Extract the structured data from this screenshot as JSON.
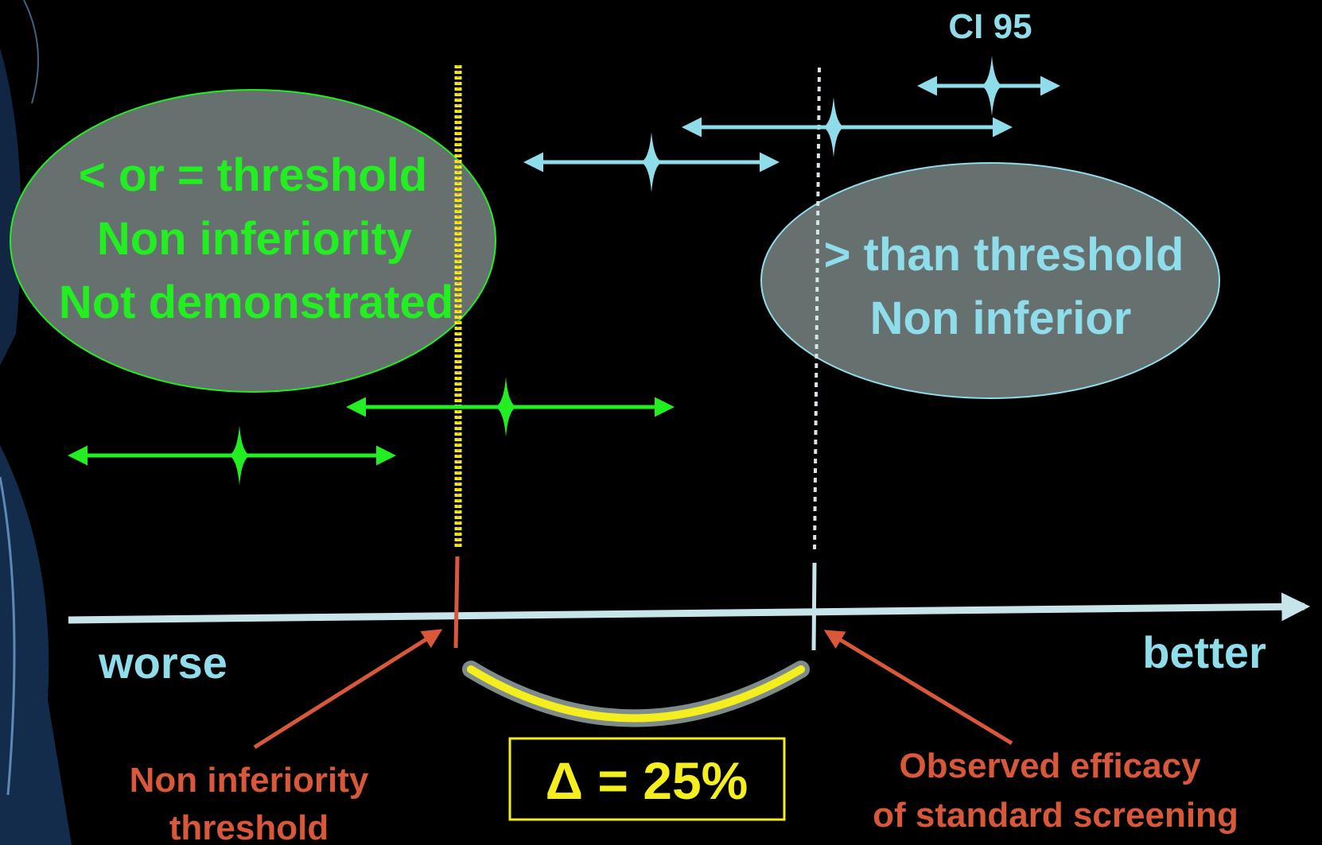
{
  "colors": {
    "background": "#000000",
    "green": "#22ee22",
    "cyan": "#8fdcea",
    "orange": "#d9583a",
    "yellow": "#f4ee1e",
    "ellipse_fill": "#6b7676",
    "axis": "#c7e4ea"
  },
  "top_label": "CI 95",
  "left_ellipse": {
    "line1": "< or = threshold",
    "line2": "Non inferiority",
    "line3": "Not demonstrated"
  },
  "right_ellipse": {
    "line1": "> than threshold",
    "line2": "Non inferior"
  },
  "axis": {
    "left_label": "worse",
    "right_label": "better"
  },
  "threshold_label": {
    "line1": "Non inferiority",
    "line2": "threshold"
  },
  "efficacy_label": {
    "line1": "Observed efficacy",
    "line2": "of standard screening"
  },
  "delta_label": "Δ = 25%",
  "intervals": [
    {
      "name": "ci-interval-cyan-top",
      "color": "cyan"
    },
    {
      "name": "ci-interval-cyan-middle",
      "color": "cyan"
    },
    {
      "name": "ci-interval-cyan-lower",
      "color": "cyan"
    },
    {
      "name": "ci-interval-green-crossing",
      "color": "green"
    },
    {
      "name": "ci-interval-green-left",
      "color": "green"
    }
  ]
}
